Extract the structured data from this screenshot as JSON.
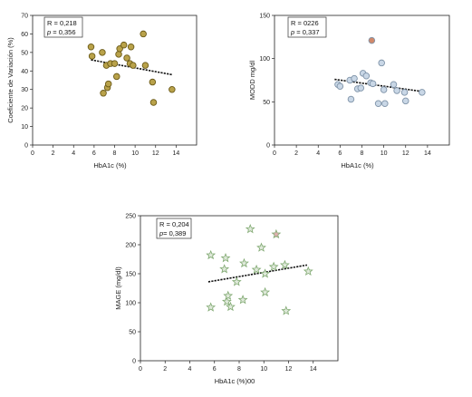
{
  "chart_data": [
    {
      "type": "scatter",
      "xlabel": "HbA1c (%)",
      "ylabel": "Coeficiente de Variación (%)",
      "xlim": [
        0,
        16
      ],
      "ylim": [
        0,
        70
      ],
      "xticks": [
        "0",
        "2",
        "4",
        "6",
        "8",
        "10",
        "12",
        "14"
      ],
      "yticks": [
        "0",
        "10",
        "20",
        "30",
        "40",
        "50",
        "60",
        "70"
      ],
      "xtick_values": [
        0,
        2,
        4,
        6,
        8,
        10,
        12,
        14
      ],
      "ytick_values": [
        0,
        10,
        20,
        30,
        40,
        50,
        60,
        70
      ],
      "stats": {
        "r_label": "R",
        "r_sep": " = ",
        "r_value": "0,218",
        "p_label": "p",
        "p_sep": " = ",
        "p_value": "0,356"
      },
      "marker": "circle",
      "marker_color": "#b9a24a",
      "marker_edge": "#6b5a18",
      "points": [
        {
          "x": 5.7,
          "y": 53
        },
        {
          "x": 5.8,
          "y": 48
        },
        {
          "x": 6.8,
          "y": 50
        },
        {
          "x": 6.9,
          "y": 28
        },
        {
          "x": 7.2,
          "y": 43
        },
        {
          "x": 7.3,
          "y": 31
        },
        {
          "x": 7.4,
          "y": 33
        },
        {
          "x": 7.6,
          "y": 44
        },
        {
          "x": 8.0,
          "y": 44
        },
        {
          "x": 8.2,
          "y": 37
        },
        {
          "x": 8.4,
          "y": 49
        },
        {
          "x": 8.5,
          "y": 52
        },
        {
          "x": 8.9,
          "y": 54
        },
        {
          "x": 9.2,
          "y": 47
        },
        {
          "x": 9.5,
          "y": 44
        },
        {
          "x": 9.6,
          "y": 53
        },
        {
          "x": 9.8,
          "y": 43
        },
        {
          "x": 10.8,
          "y": 60
        },
        {
          "x": 11.0,
          "y": 43
        },
        {
          "x": 11.7,
          "y": 34
        },
        {
          "x": 11.8,
          "y": 23
        },
        {
          "x": 13.6,
          "y": 30
        }
      ],
      "trend": {
        "x0": 5.7,
        "y0": 46,
        "x1": 13.6,
        "y1": 38
      }
    },
    {
      "type": "scatter",
      "xlabel": "HbA1c (%)",
      "ylabel": "MODD mg/dl",
      "xlim": [
        0,
        16
      ],
      "ylim": [
        0,
        150
      ],
      "xticks": [
        "0",
        "2",
        "4",
        "6",
        "8",
        "10",
        "12",
        "14"
      ],
      "yticks": [
        "0",
        "50",
        "100",
        "150"
      ],
      "xtick_values": [
        0,
        2,
        4,
        6,
        8,
        10,
        12,
        14
      ],
      "ytick_values": [
        0,
        50,
        100,
        150
      ],
      "stats": {
        "r_label": "R",
        "r_sep": " = ",
        "r_value": "0226",
        "p_label": "p",
        "p_sep": " = ",
        "p_value": "0,337"
      },
      "marker": "circle",
      "marker_color": "#c9d7e6",
      "marker_edge": "#7f93a8",
      "highlight_color": "#d1886a",
      "points": [
        {
          "x": 5.8,
          "y": 70
        },
        {
          "x": 6.0,
          "y": 68
        },
        {
          "x": 6.9,
          "y": 75
        },
        {
          "x": 7.0,
          "y": 53
        },
        {
          "x": 7.3,
          "y": 77
        },
        {
          "x": 7.6,
          "y": 65
        },
        {
          "x": 7.9,
          "y": 66
        },
        {
          "x": 8.1,
          "y": 83
        },
        {
          "x": 8.4,
          "y": 80
        },
        {
          "x": 8.8,
          "y": 72
        },
        {
          "x": 8.9,
          "y": 121,
          "highlight": true
        },
        {
          "x": 9.0,
          "y": 71
        },
        {
          "x": 9.5,
          "y": 48
        },
        {
          "x": 9.8,
          "y": 95
        },
        {
          "x": 10.0,
          "y": 64
        },
        {
          "x": 10.1,
          "y": 48
        },
        {
          "x": 10.9,
          "y": 70
        },
        {
          "x": 11.2,
          "y": 63
        },
        {
          "x": 11.9,
          "y": 61
        },
        {
          "x": 12.0,
          "y": 51
        },
        {
          "x": 13.5,
          "y": 61
        }
      ],
      "trend": {
        "x0": 5.5,
        "y0": 76,
        "x1": 13.5,
        "y1": 62
      }
    },
    {
      "type": "scatter",
      "xlabel": "HbA1c (%)00",
      "ylabel": "MAGE (mg/dl)",
      "xlim": [
        0,
        16
      ],
      "ylim": [
        0,
        250
      ],
      "xticks": [
        "0",
        "2",
        "4",
        "6",
        "8",
        "10",
        "12",
        "14"
      ],
      "yticks": [
        "0",
        "50",
        "100",
        "150",
        "200",
        "250"
      ],
      "xtick_values": [
        0,
        2,
        4,
        6,
        8,
        10,
        12,
        14
      ],
      "ytick_values": [
        0,
        50,
        100,
        150,
        200,
        250
      ],
      "stats": {
        "r_label": "R",
        "r_sep": " = ",
        "r_value": "0,204",
        "p_label": "p",
        "p_sep": "= ",
        "p_value": "0,389"
      },
      "marker": "star",
      "marker_color": "#dfe9da",
      "marker_edge": "#7fa870",
      "highlight_color": "#e0b0b0",
      "points": [
        {
          "x": 5.7,
          "y": 92
        },
        {
          "x": 5.7,
          "y": 182
        },
        {
          "x": 6.8,
          "y": 158
        },
        {
          "x": 6.9,
          "y": 177
        },
        {
          "x": 7.0,
          "y": 102
        },
        {
          "x": 7.1,
          "y": 112
        },
        {
          "x": 7.3,
          "y": 93
        },
        {
          "x": 7.8,
          "y": 136
        },
        {
          "x": 8.3,
          "y": 105
        },
        {
          "x": 8.4,
          "y": 168
        },
        {
          "x": 8.9,
          "y": 227
        },
        {
          "x": 9.4,
          "y": 157
        },
        {
          "x": 9.8,
          "y": 195
        },
        {
          "x": 10.1,
          "y": 118
        },
        {
          "x": 10.1,
          "y": 150
        },
        {
          "x": 10.8,
          "y": 162
        },
        {
          "x": 11.0,
          "y": 218,
          "highlight": true
        },
        {
          "x": 11.7,
          "y": 165
        },
        {
          "x": 11.8,
          "y": 86
        },
        {
          "x": 13.6,
          "y": 154
        }
      ],
      "trend": {
        "x0": 5.5,
        "y0": 136,
        "x1": 13.5,
        "y1": 165
      }
    }
  ]
}
